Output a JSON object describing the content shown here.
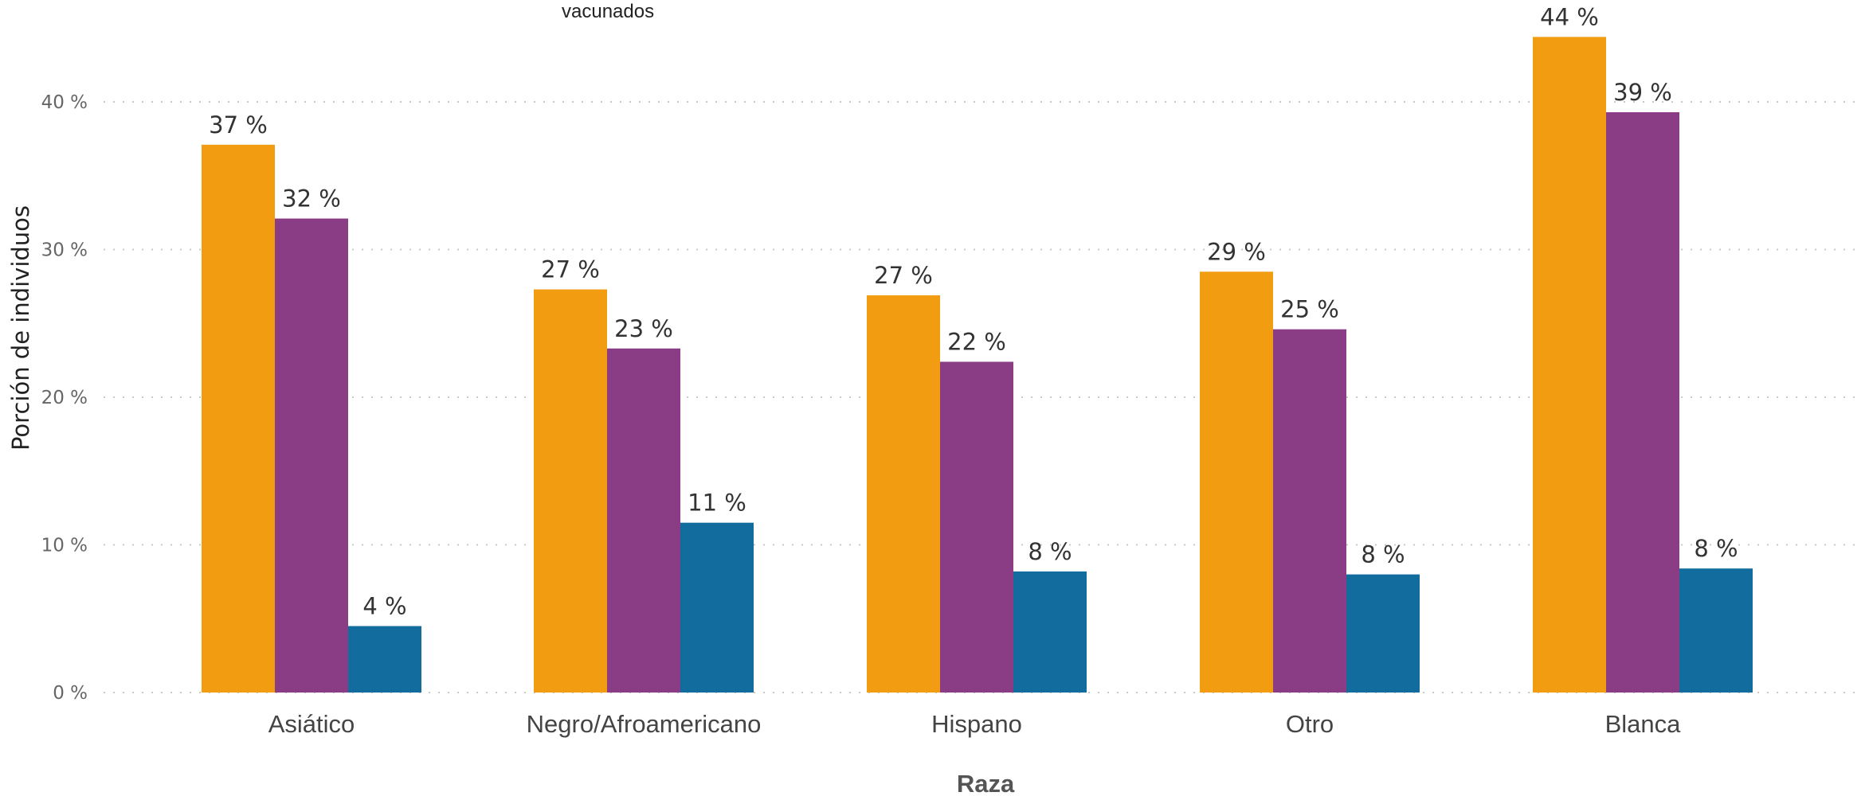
{
  "legend_fragment": "vacunados",
  "chart_data": {
    "type": "bar",
    "title": "",
    "xlabel": "Raza",
    "ylabel": "Porción de individuos",
    "categories": [
      "Asiático",
      "Negro/Afroamericano",
      "Hispano",
      "Otro",
      "Blanca"
    ],
    "series": [
      {
        "color": "#F29C12",
        "values": [
          37,
          27,
          27,
          29,
          44
        ],
        "exact": [
          37.1,
          27.3,
          26.9,
          28.5,
          44.4
        ]
      },
      {
        "color": "#8A3C84",
        "values": [
          32,
          23,
          22,
          25,
          39
        ],
        "exact": [
          32.1,
          23.3,
          22.4,
          24.6,
          39.3
        ]
      },
      {
        "color": "#136C9E",
        "values": [
          4,
          11,
          8,
          8,
          8
        ],
        "exact": [
          4.5,
          11.5,
          8.2,
          8.0,
          8.4
        ]
      }
    ],
    "yticks": [
      "0 %",
      "10 %",
      "20 %",
      "30 %",
      "40 %"
    ],
    "ytick_values": [
      0,
      10,
      20,
      30,
      40
    ],
    "ylim": [
      0,
      46
    ],
    "value_suffix": " %",
    "grid": true,
    "grid_style": "dotted"
  }
}
